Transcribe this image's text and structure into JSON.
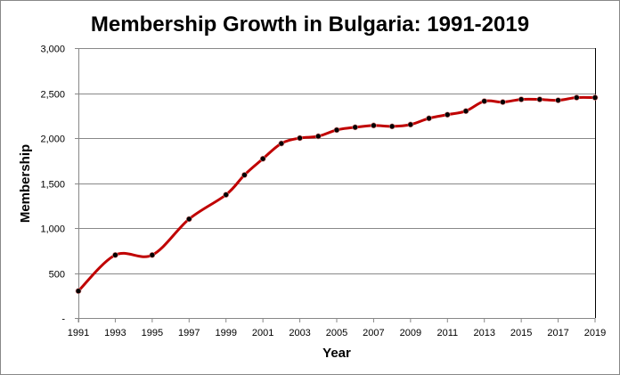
{
  "chart_data": {
    "type": "line",
    "title": "Membership Growth in Bulgaria: 1991-2019",
    "xlabel": "Year",
    "ylabel": "Membership",
    "ylim": [
      0,
      3000
    ],
    "xlim": [
      1991,
      2019
    ],
    "y_ticks": [
      0,
      500,
      1000,
      1500,
      2000,
      2500,
      3000
    ],
    "y_tick_labels": [
      "-",
      "500",
      "1,000",
      "1,500",
      "2,000",
      "2,500",
      "3,000"
    ],
    "x_tick_labels": [
      "1991",
      "1993",
      "1995",
      "1997",
      "1999",
      "2001",
      "2003",
      "2005",
      "2007",
      "2009",
      "2011",
      "2013",
      "2015",
      "2017",
      "2019"
    ],
    "grid": true,
    "legend": "none",
    "series": [
      {
        "name": "Membership",
        "color": "#c00000",
        "marker_color": "#000000",
        "x": [
          1991,
          1993,
          1995,
          1997,
          1999,
          2000,
          2001,
          2002,
          2003,
          2004,
          2005,
          2006,
          2007,
          2008,
          2009,
          2010,
          2011,
          2012,
          2013,
          2014,
          2015,
          2016,
          2017,
          2018,
          2019
        ],
        "values": [
          300,
          700,
          700,
          1100,
          1370,
          1590,
          1770,
          1940,
          2000,
          2020,
          2090,
          2120,
          2140,
          2130,
          2150,
          2220,
          2260,
          2300,
          2410,
          2400,
          2430,
          2430,
          2420,
          2450,
          2450
        ]
      }
    ]
  }
}
